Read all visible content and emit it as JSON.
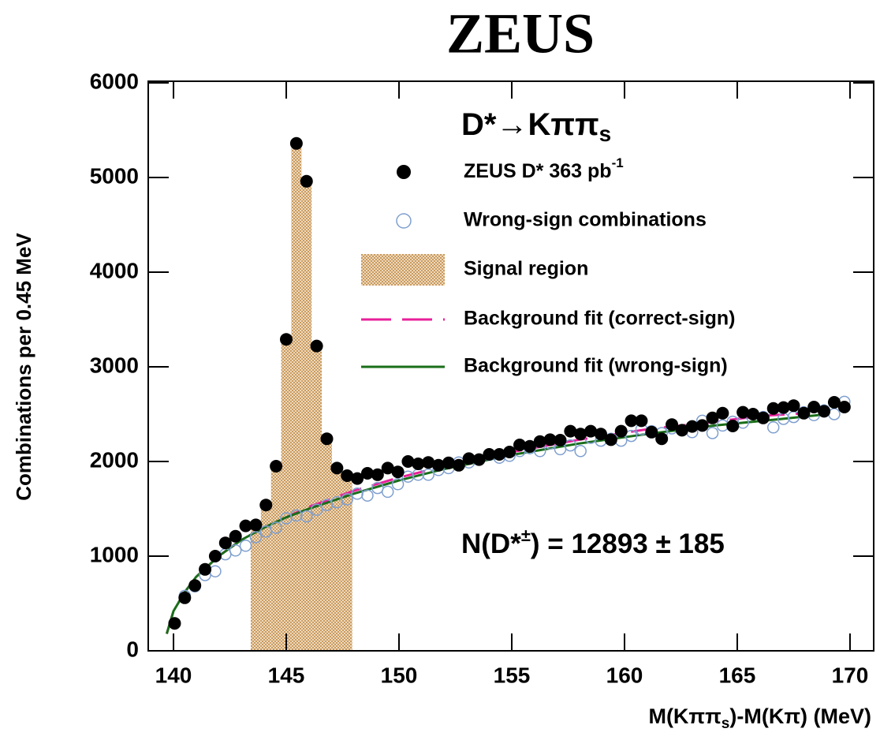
{
  "chart_data": {
    "type": "scatter",
    "title": "ZEUS",
    "header": {
      "text": "D*→Kππ",
      "sub": "s"
    },
    "annotation": {
      "text": "N(D*",
      "sup": "±",
      "rest": ") = 12893 ± 185"
    },
    "x_label": {
      "text": "M(Kππ",
      "sub": "s",
      "rest": ")-M(Kπ) (MeV)"
    },
    "y_label": "Combinations per 0.45 MeV",
    "xlim": [
      138.88,
      171.05
    ],
    "ylim": [
      0,
      6000
    ],
    "xticks": [
      140,
      145,
      150,
      155,
      160,
      165,
      170
    ],
    "yticks": [
      0,
      1000,
      2000,
      3000,
      4000,
      5000,
      6000
    ],
    "x": [
      140.05,
      140.5,
      140.95,
      141.4,
      141.85,
      142.3,
      142.75,
      143.2,
      143.65,
      144.1,
      144.55,
      145,
      145.45,
      145.9,
      146.35,
      146.8,
      147.25,
      147.7,
      148.15,
      148.6,
      149.05,
      149.5,
      149.95,
      150.4,
      150.85,
      151.3,
      151.75,
      152.2,
      152.65,
      153.1,
      153.55,
      154,
      154.45,
      154.9,
      155.35,
      155.8,
      156.25,
      156.7,
      157.15,
      157.6,
      158.05,
      158.5,
      158.95,
      159.4,
      159.85,
      160.3,
      160.75,
      161.2,
      161.65,
      162.1,
      162.55,
      163,
      163.45,
      163.9,
      164.35,
      164.8,
      165.25,
      165.7,
      166.15,
      166.6,
      167.05,
      167.5,
      167.95,
      168.4,
      168.85,
      169.3,
      169.75
    ],
    "series": [
      {
        "name": "ZEUS D* 363 pb",
        "name_sup": "-1",
        "color": "#000000",
        "marker": "filled",
        "values": [
          290,
          560,
          690,
          860,
          1000,
          1140,
          1210,
          1320,
          1330,
          1540,
          1950,
          3290,
          5360,
          4960,
          3220,
          2240,
          1930,
          1850,
          1820,
          1875,
          1860,
          1930,
          1890,
          2000,
          1975,
          1990,
          1960,
          1985,
          1960,
          2030,
          2020,
          2075,
          2075,
          2100,
          2175,
          2160,
          2210,
          2230,
          2225,
          2320,
          2290,
          2320,
          2290,
          2230,
          2320,
          2430,
          2430,
          2310,
          2240,
          2390,
          2330,
          2370,
          2380,
          2460,
          2510,
          2375,
          2520,
          2500,
          2460,
          2560,
          2570,
          2590,
          2510,
          2575,
          2530,
          2625,
          2575
        ]
      },
      {
        "name": "Wrong-sign combinations",
        "color": "#7f9fcf",
        "marker": "open",
        "values": [
          null,
          580,
          680,
          800,
          840,
          1020,
          1060,
          1110,
          1200,
          1260,
          1300,
          1400,
          1430,
          1420,
          1490,
          1540,
          1570,
          1600,
          1660,
          1640,
          1720,
          1680,
          1760,
          1840,
          1860,
          1860,
          1910,
          1930,
          1990,
          1990,
          2020,
          2070,
          2040,
          2060,
          2110,
          2140,
          2110,
          2190,
          2130,
          2170,
          2110,
          2250,
          2220,
          2240,
          2220,
          2270,
          2340,
          2320,
          2300,
          2350,
          2330,
          2310,
          2430,
          2300,
          2380,
          2420,
          2410,
          2500,
          2470,
          2360,
          2450,
          2470,
          2520,
          2490,
          2540,
          2500,
          2630
        ]
      }
    ],
    "signal_region": {
      "name": "Signal region",
      "xlim": [
        143.425,
        147.925
      ],
      "series": 0,
      "color": "#d9b07a"
    },
    "fits": [
      {
        "name": "Background fit (correct-sign)",
        "color": "#e8209a",
        "dashed": true,
        "x": [
          139.7,
          140,
          140.5,
          141,
          142,
          143,
          144,
          145,
          146,
          148,
          150,
          152,
          155,
          158,
          161,
          164,
          166,
          168
        ],
        "values": [
          180,
          420,
          620,
          780,
          1000,
          1170,
          1300,
          1410,
          1520,
          1690,
          1830,
          1950,
          2100,
          2230,
          2340,
          2420,
          2480,
          2510
        ]
      },
      {
        "name": "Background fit (wrong-sign)",
        "color": "#1a6e1a",
        "dashed": false,
        "x": [
          139.7,
          140,
          140.5,
          141,
          142,
          143,
          144,
          145,
          146,
          148,
          150,
          152,
          155,
          158,
          161,
          164,
          167,
          169
        ],
        "values": [
          180,
          420,
          620,
          780,
          1000,
          1170,
          1300,
          1410,
          1500,
          1660,
          1800,
          1920,
          2070,
          2190,
          2290,
          2380,
          2450,
          2500
        ]
      }
    ]
  }
}
